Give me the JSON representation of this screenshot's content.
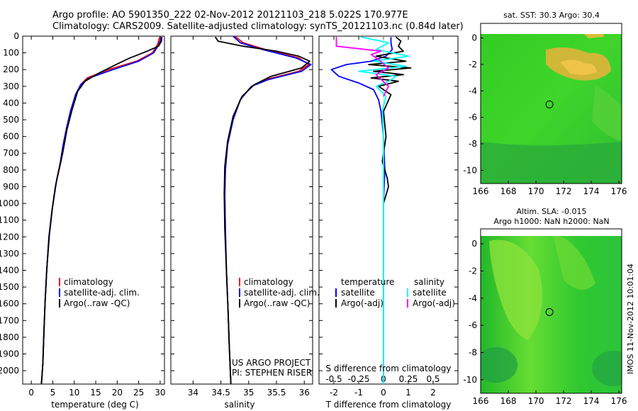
{
  "header": {
    "line1": "Argo profile: AO 5901350_222 02-Nov-2012 20121103_218 5.022S 170.977E",
    "line2": "Climatology: CARS2009. Satellite-adjusted climatology: synTS_20121103.nc (0.84d later)"
  },
  "colors": {
    "climatology": "#ff0000",
    "satellite": "#0000ff",
    "argo": "#000000",
    "salinity_satellite": "#00ffff",
    "salinity_argo": "#ff00ff"
  },
  "chart_data": [
    {
      "type": "line",
      "id": "temperature",
      "xlabel": "temperature (deg C)",
      "xlim": [
        -2,
        31
      ],
      "xticks": [
        0,
        5,
        10,
        15,
        20,
        25,
        30
      ],
      "ylim": [
        2080,
        0
      ],
      "yticks": [
        0,
        100,
        200,
        300,
        400,
        500,
        600,
        700,
        800,
        900,
        1000,
        1100,
        1200,
        1300,
        1400,
        1500,
        1600,
        1700,
        1800,
        1900,
        2000
      ],
      "legend": [
        "climatology",
        "satellite-adj. clim.",
        "Argo(..raw -QC)"
      ],
      "series": [
        {
          "name": "climatology",
          "color": "#ff0000",
          "x": [
            29.9,
            29.4,
            28.2,
            24.5,
            18,
            13,
            11.5,
            10.4,
            9.2,
            8.3,
            7.5,
            6.9,
            5.6,
            4.8,
            4.1,
            3.6,
            3.2,
            2.9,
            2.7,
            2.5,
            2.35
          ],
          "y": [
            5,
            50,
            100,
            150,
            200,
            250,
            290,
            350,
            450,
            550,
            650,
            750,
            900,
            1050,
            1200,
            1400,
            1600,
            1800,
            1950,
            2030,
            2080
          ]
        },
        {
          "name": "satellite-adj. clim.",
          "color": "#0000ff",
          "x": [
            30.3,
            29.7,
            28.5,
            25,
            19,
            13.5,
            11.5,
            10.3,
            9.1,
            8.2,
            7.4,
            6.8,
            5.6,
            4.8,
            4.1,
            3.6,
            3.2,
            2.9,
            2.7,
            2.5,
            2.35
          ],
          "y": [
            5,
            50,
            100,
            150,
            200,
            250,
            290,
            350,
            450,
            550,
            650,
            750,
            900,
            1050,
            1200,
            1400,
            1600,
            1800,
            1950,
            2030,
            2080
          ]
        },
        {
          "name": "Argo(..raw -QC)",
          "color": "#000000",
          "x": [
            30.4,
            30.3,
            29.6,
            27,
            23,
            20.5,
            15.8,
            12.5,
            10.8,
            9.5,
            8.3,
            7.3,
            5.9,
            4.9,
            4.2,
            3.6,
            3.2,
            2.9,
            2.7,
            2.5,
            2.35
          ],
          "y": [
            5,
            30,
            60,
            90,
            130,
            160,
            220,
            270,
            330,
            440,
            560,
            700,
            860,
            1030,
            1190,
            1400,
            1600,
            1800,
            1950,
            2030,
            2080
          ]
        }
      ]
    },
    {
      "type": "line",
      "id": "salinity",
      "xlabel": "salinity",
      "xlim": [
        33.6,
        36.15
      ],
      "xticks": [
        34,
        34.5,
        35,
        35.5,
        36
      ],
      "xticklabels": [
        "34",
        "34.5",
        "35",
        "35.5",
        "36"
      ],
      "ylim": [
        2080,
        0
      ],
      "legend": [
        "climatology",
        "satellite-adj. clim.",
        "Argo(..raw -QC)"
      ],
      "annotation": [
        "US ARGO PROJECT",
        "PI: STEPHEN RISER"
      ],
      "series": [
        {
          "name": "climatology",
          "color": "#ff0000",
          "x": [
            34.75,
            34.9,
            35.3,
            35.9,
            36.08,
            35.9,
            35.3,
            35.05,
            34.85,
            34.72,
            34.62,
            34.58,
            34.57,
            34.58,
            34.6,
            34.63,
            34.65,
            34.67,
            34.68
          ],
          "y": [
            0,
            40,
            80,
            130,
            170,
            210,
            260,
            300,
            380,
            500,
            650,
            800,
            950,
            1150,
            1400,
            1650,
            1850,
            2000,
            2080
          ]
        },
        {
          "name": "satellite-adj. clim.",
          "color": "#0000ff",
          "x": [
            34.72,
            34.85,
            35.25,
            35.85,
            36.12,
            35.95,
            35.35,
            35.05,
            34.85,
            34.72,
            34.62,
            34.58,
            34.57,
            34.58,
            34.6,
            34.63,
            34.65,
            34.67,
            34.68
          ],
          "y": [
            0,
            40,
            80,
            130,
            170,
            210,
            260,
            300,
            380,
            500,
            650,
            800,
            950,
            1150,
            1400,
            1650,
            1850,
            2000,
            2080
          ]
        },
        {
          "name": "Argo(..raw -QC)",
          "color": "#000000",
          "x": [
            34.4,
            34.45,
            34.9,
            35.5,
            35.9,
            36.1,
            35.95,
            35.4,
            35.1,
            34.88,
            34.72,
            34.62,
            34.57,
            34.56,
            34.57,
            34.6,
            34.63,
            34.65,
            34.67,
            34.68
          ],
          "y": [
            5,
            30,
            60,
            90,
            120,
            150,
            190,
            240,
            290,
            360,
            480,
            630,
            780,
            940,
            1150,
            1400,
            1650,
            1850,
            2000,
            2080
          ]
        }
      ]
    },
    {
      "type": "line",
      "id": "difference",
      "xlabel": "T difference from climatology",
      "xlabel_top": "S difference from climatology",
      "xlim": [
        -2.6,
        3.0
      ],
      "xticks": [
        -2,
        -1,
        0,
        1,
        2
      ],
      "xticklabels": [
        "-2",
        "-1",
        "0",
        "1",
        "2"
      ],
      "sticks": [
        -0.5,
        -0.25,
        0,
        0.25,
        0.5
      ],
      "sticklabels": [
        "-0.5",
        "-0.25",
        "0",
        "0.25",
        "0.5"
      ],
      "ylim": [
        2080,
        0
      ],
      "legend_temperature_title": "temperature",
      "legend_salinity_title": "salinity",
      "legend": [
        "satellite",
        "Argo(-adj)",
        "satellite",
        "Argo(-adj)"
      ],
      "series": [
        {
          "name": "satellite",
          "group": "temperature",
          "color": "#0000ff",
          "x": [
            0.3,
            0.3,
            0.35,
            0.1,
            -0.5,
            -1.5,
            -2.1,
            -1.8,
            -1.0,
            -0.4,
            -0.2,
            -0.1,
            0.0,
            0.05,
            0.0,
            0.0,
            0.0,
            0.0
          ],
          "y": [
            5,
            40,
            80,
            120,
            150,
            170,
            200,
            240,
            280,
            320,
            380,
            450,
            600,
            800,
            1000,
            1500,
            2000,
            2080
          ]
        },
        {
          "name": "Argo(-adj)",
          "group": "temperature",
          "color": "#000000",
          "x": [
            0.5,
            0.7,
            0.6,
            0.8,
            -0.3,
            0.9,
            -0.6,
            1.1,
            -0.4,
            0.8,
            -0.5,
            0.6,
            -0.2,
            0.3,
            0.0,
            0.1,
            -0.05,
            0.15,
            0.2,
            0.0,
            0.0
          ],
          "y": [
            5,
            30,
            60,
            90,
            120,
            150,
            170,
            190,
            210,
            230,
            250,
            270,
            300,
            350,
            450,
            600,
            750,
            850,
            900,
            1000,
            1010
          ]
        },
        {
          "name": "satellite",
          "group": "salinity",
          "color": "#00ffff",
          "x": [
            -0.9,
            0.2,
            -0.3,
            1.0,
            -0.4,
            0.9,
            -1.0,
            0.5,
            0.2,
            -0.3,
            0.1,
            -0.05,
            0.0,
            0.0,
            0.0,
            0.0
          ],
          "y": [
            5,
            40,
            80,
            120,
            150,
            180,
            210,
            240,
            270,
            300,
            360,
            450,
            600,
            800,
            1500,
            2080
          ]
        },
        {
          "name": "Argo(-adj)",
          "group": "salinity",
          "color": "#ff00ff",
          "x": [
            -1.9,
            -1.9,
            -0.1,
            -0.5,
            -0.2,
            0.2,
            -0.3,
            0.2,
            0.0
          ],
          "y": [
            5,
            60,
            90,
            110,
            140,
            190,
            230,
            300,
            360
          ]
        }
      ]
    },
    {
      "type": "heatmap",
      "id": "sst-map",
      "title": "sat. SST: 30.3 Argo: 30.4",
      "xlim": [
        166,
        176.2
      ],
      "ylim": [
        -11,
        1.1
      ],
      "xticks": [
        166,
        168,
        170,
        172,
        174,
        176
      ],
      "yticks": [
        0,
        -2,
        -4,
        -6,
        -8,
        -10
      ],
      "marker": [
        170.977,
        -5.022
      ]
    },
    {
      "type": "heatmap",
      "id": "sla-map",
      "title": "Altim. SLA: -0.015",
      "subtitle": "Argo h1000: NaN h2000: NaN",
      "xlim": [
        166,
        176.2
      ],
      "ylim": [
        -11,
        1.1
      ],
      "xticks": [
        166,
        168,
        170,
        172,
        174,
        176
      ],
      "yticks": [
        0,
        -2,
        -4,
        -6,
        -8,
        -10
      ],
      "marker": [
        170.977,
        -5.022
      ]
    }
  ],
  "side_label": "IMOS 11-Nov-2012 10:01:04"
}
